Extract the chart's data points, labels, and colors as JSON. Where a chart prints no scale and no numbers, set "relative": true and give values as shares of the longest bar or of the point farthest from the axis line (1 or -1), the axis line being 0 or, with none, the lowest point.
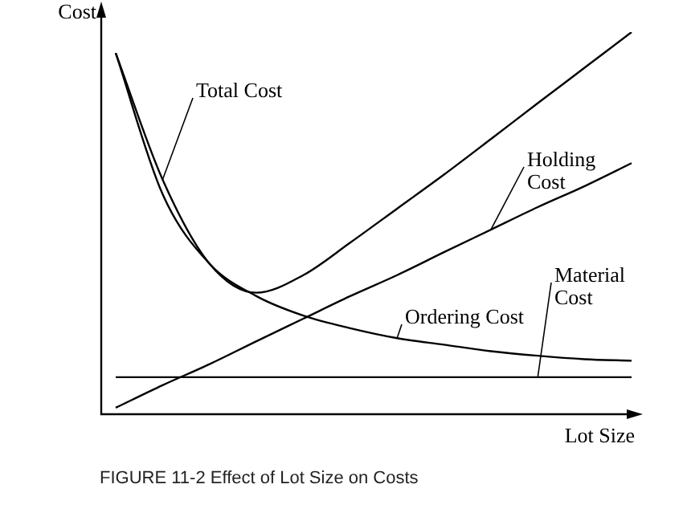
{
  "chart_data": {
    "type": "line",
    "relative": true,
    "xlabel": "Lot Size",
    "ylabel": "Cost",
    "marker": "none",
    "legend": false,
    "categories": [
      null,
      null,
      null,
      null,
      null,
      null,
      null,
      null,
      null,
      null,
      null,
      null
    ],
    "series": [
      {
        "name": "Total Cost",
        "color": "#000000",
        "values": [
          0.945,
          0.614,
          0.394,
          0.318,
          0.364,
          0.449,
          0.538,
          0.627,
          0.72,
          0.814,
          0.907,
          1
        ]
      },
      {
        "name": "Holding Cost",
        "color": "#000000",
        "values": [
          0.017,
          0.076,
          0.131,
          0.191,
          0.25,
          0.309,
          0.364,
          0.424,
          0.483,
          0.542,
          0.597,
          0.657
        ]
      },
      {
        "name": "Ordering Cost",
        "color": "#000000",
        "values": [
          0.945,
          0.576,
          0.394,
          0.309,
          0.258,
          0.225,
          0.199,
          0.182,
          0.165,
          0.153,
          0.144,
          0.14
        ]
      },
      {
        "name": "Material Cost",
        "color": "#000000",
        "values": [
          0.097,
          0.097,
          0.097,
          0.097,
          0.097,
          0.097,
          0.097,
          0.097,
          0.097,
          0.097,
          0.097,
          0.097
        ]
      }
    ],
    "annotations": [
      "FIGURE 11-2 Effect of Lot Size on Costs"
    ]
  }
}
